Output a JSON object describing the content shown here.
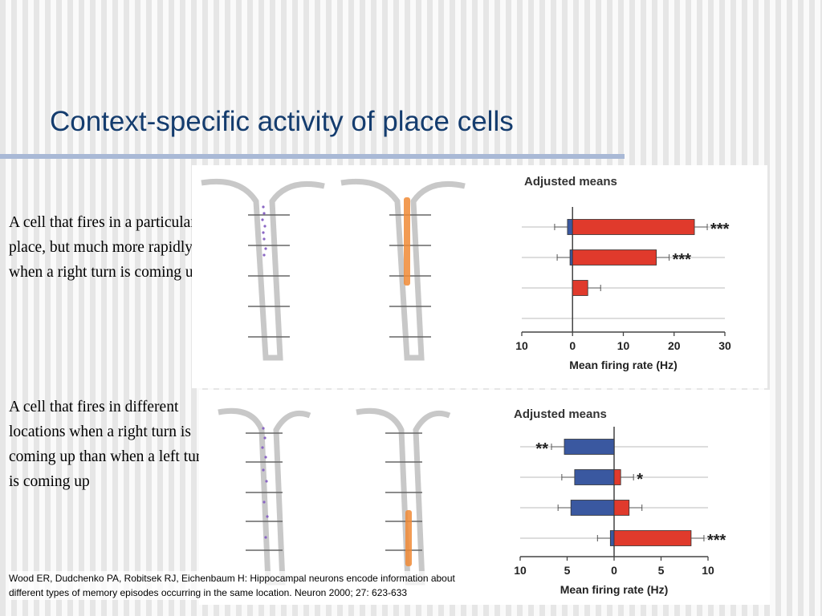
{
  "slide": {
    "title": "Context-specific activity of place cells",
    "caption_1": "A cell that fires in a particular place, but much more rapidly when a right turn is coming up",
    "caption_2": "A cell that fires in different locations when a right turn is coming up than when a left turn is coming up",
    "reference": "Wood ER, Dudchenko PA, Robitsek RJ, Eichenbaum H: Hippocampal neurons encode information about different types of memory episodes occurring in the same location. Neuron 2000; 27: 623-633"
  },
  "colors": {
    "title": "#143c6e",
    "rule": "#a9b9d6",
    "red_bar": "#e03a2c",
    "blue_bar": "#3a58a0",
    "purple_spikes": "#8a66c4",
    "orange_spikes": "#f08a35"
  },
  "chart_data": [
    {
      "type": "bar",
      "orientation": "horizontal",
      "title": "Adjusted means",
      "xlabel": "Mean firing rate (Hz)",
      "xlim": [
        -10,
        30
      ],
      "x_ticks": [
        -10,
        0,
        10,
        20,
        30
      ],
      "x_tick_labels": [
        "10",
        "0",
        "10",
        "20",
        "30"
      ],
      "rows": 4,
      "series": [
        {
          "color": "blue",
          "values": [
            -1,
            -0.5,
            null,
            null
          ]
        },
        {
          "color": "red",
          "values": [
            24,
            16.5,
            3,
            null
          ]
        }
      ],
      "significance": [
        "***",
        "***",
        "",
        ""
      ]
    },
    {
      "type": "bar",
      "orientation": "horizontal",
      "title": "Adjusted means",
      "xlabel": "Mean firing rate (Hz)",
      "xlim": [
        -10,
        10
      ],
      "x_ticks": [
        -10,
        -5,
        0,
        5,
        10
      ],
      "x_tick_labels": [
        "10",
        "5",
        "0",
        "5",
        "10"
      ],
      "rows": 4,
      "series": [
        {
          "color": "blue",
          "values": [
            -5.3,
            -4.2,
            -4.6,
            -0.4
          ]
        },
        {
          "color": "red",
          "values": [
            null,
            0.7,
            1.6,
            8.2
          ]
        }
      ],
      "significance": [
        "**",
        "*",
        "",
        "***"
      ]
    }
  ]
}
